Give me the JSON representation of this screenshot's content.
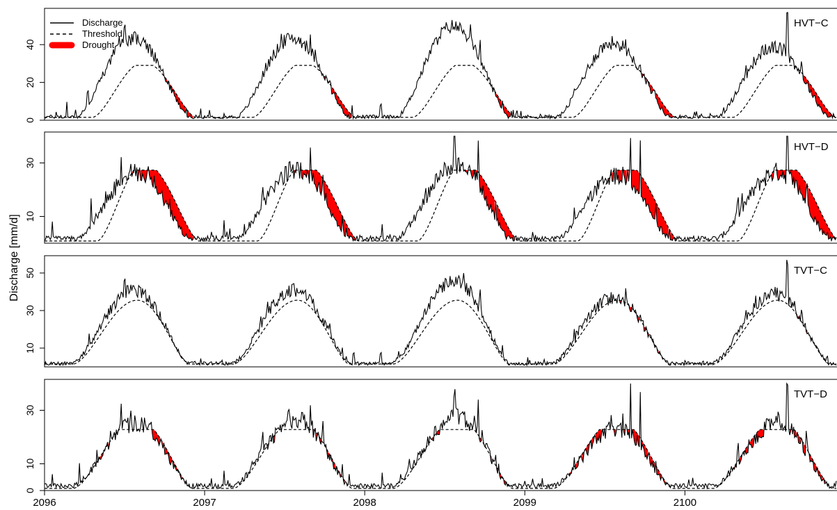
{
  "chart_data": {
    "type": "line",
    "ylabel": "Discharge [mm/d]",
    "x_ticks": [
      "2096",
      "2097",
      "2098",
      "2099",
      "2100"
    ],
    "x_range": [
      2096,
      2100.95
    ],
    "legend": {
      "placement": "top-left",
      "entries": [
        {
          "label": "Discharge",
          "style": "solid"
        },
        {
          "label": "Threshold",
          "style": "dashed"
        },
        {
          "label": "Drought",
          "style": "filled-red"
        }
      ]
    },
    "colors": {
      "discharge": "#000000",
      "threshold": "#000000",
      "drought": "#ff0000"
    },
    "panels": [
      {
        "label": "HVT−C",
        "yticks": [
          0,
          20,
          40
        ],
        "ylim": [
          0,
          57
        ],
        "threshold": {
          "base": 1.5,
          "amp": 27.5,
          "start": 0.3,
          "end": 0.94,
          "peak": 0.62,
          "flat": 0.06
        },
        "discharge": {
          "base": 1.5,
          "amp": 40,
          "start": 0.2,
          "end": 0.9,
          "peak": 0.55,
          "noise": 5.5
        },
        "years": [
          {
            "year": 2096,
            "scale": 1.02,
            "spikes": [
              [
                0.14,
                8
              ],
              [
                0.27,
                6
              ],
              [
                0.4,
                4
              ],
              [
                0.5,
                7
              ]
            ]
          },
          {
            "year": 2097,
            "scale": 1.02,
            "spikes": [
              [
                0.38,
                5
              ],
              [
                0.66,
                6
              ],
              [
                0.78,
                4
              ],
              [
                0.92,
                6
              ]
            ]
          },
          {
            "year": 2098,
            "scale": 1.18,
            "spikes": [
              [
                0.1,
                6
              ],
              [
                0.66,
                6
              ],
              [
                0.72,
                9
              ],
              [
                0.86,
                5
              ]
            ]
          },
          {
            "year": 2099,
            "scale": 0.96,
            "spikes": [
              [
                0.31,
                4
              ],
              [
                0.63,
                6
              ],
              [
                0.72,
                5
              ],
              [
                0.81,
                4
              ]
            ]
          },
          {
            "year": 2100,
            "scale": 0.9,
            "spikes": [
              [
                0.38,
                5
              ],
              [
                0.64,
                24
              ],
              [
                0.73,
                6
              ]
            ]
          }
        ]
      },
      {
        "label": "HVT−D",
        "yticks": [
          10,
          30
        ],
        "ylim": [
          0,
          40
        ],
        "threshold": {
          "base": 0.8,
          "amp": 26.5,
          "start": 0.33,
          "end": 0.96,
          "peak": 0.62,
          "flat": 0.1
        },
        "discharge": {
          "base": 1.5,
          "amp": 24,
          "start": 0.2,
          "end": 0.9,
          "peak": 0.58,
          "noise": 5.5
        },
        "years": [
          {
            "year": 2096,
            "scale": 1.0,
            "spikes": [
              [
                0.05,
                6
              ],
              [
                0.29,
                10
              ],
              [
                0.48,
                8
              ],
              [
                0.54,
                5
              ]
            ]
          },
          {
            "year": 2097,
            "scale": 1.05,
            "spikes": [
              [
                0.12,
                6
              ],
              [
                0.36,
                6
              ],
              [
                0.66,
                9
              ],
              [
                0.74,
                9
              ],
              [
                0.86,
                5
              ]
            ]
          },
          {
            "year": 2098,
            "scale": 1.12,
            "spikes": [
              [
                0.11,
                6
              ],
              [
                0.56,
                8
              ],
              [
                0.71,
                14
              ],
              [
                0.82,
                5
              ]
            ]
          },
          {
            "year": 2099,
            "scale": 0.96,
            "spikes": [
              [
                0.31,
                5
              ],
              [
                0.54,
                6
              ],
              [
                0.66,
                14
              ],
              [
                0.72,
                18
              ],
              [
                0.82,
                5
              ]
            ]
          },
          {
            "year": 2100,
            "scale": 1.0,
            "spikes": [
              [
                0.33,
                5
              ],
              [
                0.64,
                16
              ],
              [
                0.76,
                6
              ]
            ]
          }
        ]
      },
      {
        "label": "TVT−C",
        "yticks": [
          10,
          30,
          50
        ],
        "ylim": [
          0,
          57
        ],
        "threshold": {
          "base": 1.5,
          "amp": 34,
          "start": 0.18,
          "end": 0.9,
          "peak": 0.58,
          "flat": 0.0
        },
        "discharge": {
          "base": 1.5,
          "amp": 37,
          "start": 0.17,
          "end": 0.9,
          "peak": 0.56,
          "noise": 5.5
        },
        "years": [
          {
            "year": 2096,
            "scale": 1.03,
            "spikes": [
              [
                0.28,
                5
              ],
              [
                0.5,
                6
              ],
              [
                0.6,
                4
              ]
            ]
          },
          {
            "year": 2097,
            "scale": 1.04,
            "spikes": [
              [
                0.39,
                5
              ],
              [
                0.66,
                6
              ],
              [
                0.78,
                5
              ],
              [
                0.93,
                5
              ]
            ]
          },
          {
            "year": 2098,
            "scale": 1.16,
            "spikes": [
              [
                0.1,
                5
              ],
              [
                0.66,
                6
              ],
              [
                0.72,
                10
              ],
              [
                0.86,
                5
              ]
            ]
          },
          {
            "year": 2099,
            "scale": 0.93,
            "spikes": [
              [
                0.31,
                4
              ],
              [
                0.63,
                6
              ],
              [
                0.72,
                5
              ]
            ]
          },
          {
            "year": 2100,
            "scale": 0.98,
            "spikes": [
              [
                0.38,
                5
              ],
              [
                0.64,
                22
              ],
              [
                0.73,
                5
              ]
            ]
          }
        ]
      },
      {
        "label": "TVT−D",
        "yticks": [
          0,
          10,
          30
        ],
        "ylim": [
          0,
          40
        ],
        "threshold": {
          "base": 0.8,
          "amp": 22,
          "start": 0.18,
          "end": 0.92,
          "peak": 0.58,
          "flat": 0.18
        },
        "discharge": {
          "base": 1.5,
          "amp": 23,
          "start": 0.18,
          "end": 0.9,
          "peak": 0.58,
          "noise": 5.0
        },
        "years": [
          {
            "year": 2096,
            "scale": 1.0,
            "spikes": [
              [
                0.05,
                5
              ],
              [
                0.22,
                8
              ],
              [
                0.48,
                8
              ],
              [
                0.54,
                5
              ]
            ]
          },
          {
            "year": 2097,
            "scale": 1.05,
            "spikes": [
              [
                0.12,
                5
              ],
              [
                0.36,
                6
              ],
              [
                0.66,
                10
              ],
              [
                0.74,
                9
              ],
              [
                0.86,
                5
              ]
            ]
          },
          {
            "year": 2098,
            "scale": 1.1,
            "spikes": [
              [
                0.11,
                5
              ],
              [
                0.56,
                8
              ],
              [
                0.71,
                14
              ],
              [
                0.82,
                5
              ]
            ]
          },
          {
            "year": 2099,
            "scale": 0.9,
            "spikes": [
              [
                0.31,
                5
              ],
              [
                0.54,
                6
              ],
              [
                0.66,
                16
              ],
              [
                0.72,
                18
              ],
              [
                0.82,
                5
              ]
            ]
          },
          {
            "year": 2100,
            "scale": 0.98,
            "spikes": [
              [
                0.33,
                5
              ],
              [
                0.64,
                16
              ],
              [
                0.76,
                6
              ]
            ]
          }
        ]
      }
    ]
  }
}
